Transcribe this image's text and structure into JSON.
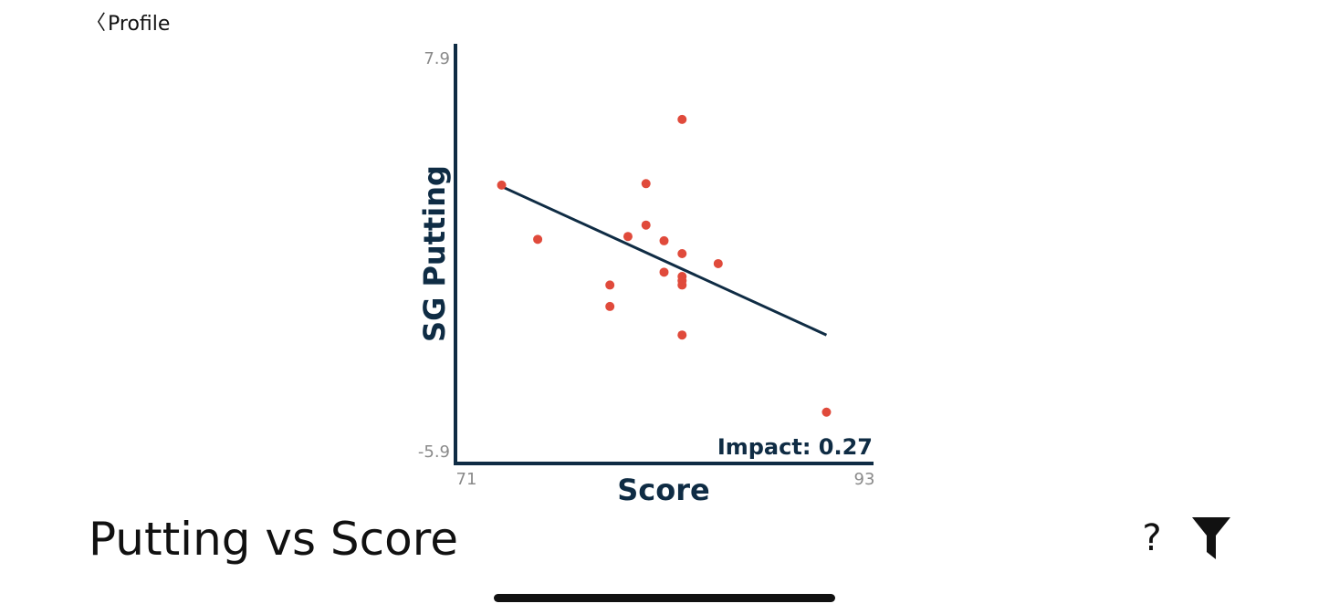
{
  "nav": {
    "back_label": "Profile"
  },
  "page": {
    "title": "Putting vs Score",
    "help_label": "?"
  },
  "icons": {
    "back": "chevron-left-icon",
    "filter": "filter-funnel-icon"
  },
  "colors": {
    "axis": "#0f2c44",
    "points": "#e04a3b",
    "trend": "#0f2c44",
    "ticks": "#8a8a8a"
  },
  "chart_data": {
    "type": "scatter",
    "xlabel": "Score",
    "ylabel": "SG Putting",
    "xlim": [
      71,
      93
    ],
    "ylim": [
      -5.9,
      7.9
    ],
    "x_tick_labels": [
      "71",
      "93"
    ],
    "y_tick_labels": [
      "7.9",
      "-5.9"
    ],
    "annotation": "Impact: 0.27",
    "points": [
      {
        "x": 73,
        "y": 3.4
      },
      {
        "x": 75,
        "y": 1.5
      },
      {
        "x": 79,
        "y": -0.1
      },
      {
        "x": 79,
        "y": -0.85
      },
      {
        "x": 80,
        "y": 1.6
      },
      {
        "x": 81,
        "y": 3.45
      },
      {
        "x": 81,
        "y": 2.0
      },
      {
        "x": 82,
        "y": 1.45
      },
      {
        "x": 82,
        "y": 0.35
      },
      {
        "x": 83,
        "y": 5.7
      },
      {
        "x": 83,
        "y": 1.0
      },
      {
        "x": 83,
        "y": 0.2
      },
      {
        "x": 83,
        "y": 0.05
      },
      {
        "x": 83,
        "y": -0.1
      },
      {
        "x": 83,
        "y": -1.85
      },
      {
        "x": 85,
        "y": 0.65
      },
      {
        "x": 91,
        "y": -4.55
      }
    ],
    "trendline": {
      "x": [
        73,
        91
      ],
      "y": [
        3.35,
        -1.85
      ]
    }
  }
}
